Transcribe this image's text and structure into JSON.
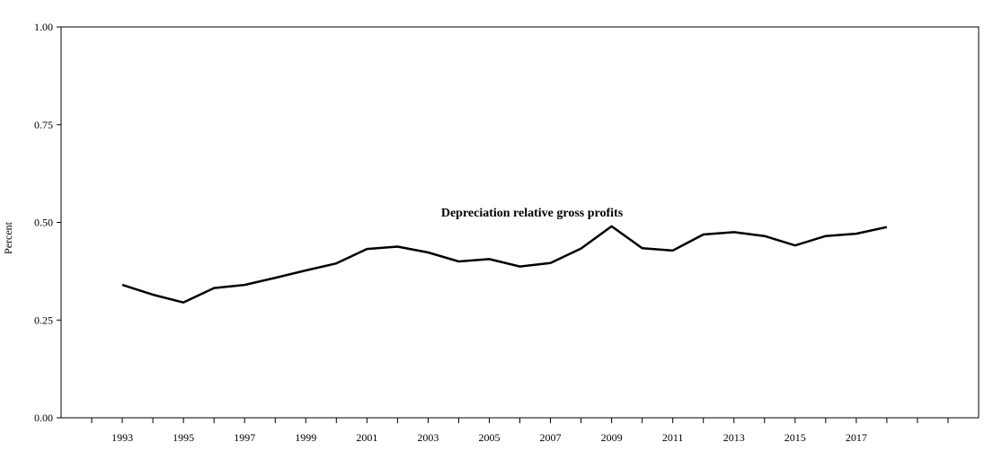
{
  "chart_data": {
    "type": "line",
    "title": "",
    "xlabel": "",
    "ylabel": "Percent",
    "ylim": [
      0,
      1
    ],
    "y_ticks": [
      "0.00",
      "0.25",
      "0.50",
      "0.75",
      "1.00"
    ],
    "x_tick_labels": [
      "1993",
      "1995",
      "1997",
      "1999",
      "2001",
      "2003",
      "2005",
      "2007",
      "2009",
      "2011",
      "2013",
      "2015",
      "2017"
    ],
    "x_range": [
      1991,
      2021
    ],
    "grid": false,
    "annotation": "Depreciation relative gross profits",
    "line_color": "#000000",
    "series": [
      {
        "x": [
          1993,
          1994,
          1995,
          1996,
          1997,
          1998,
          1999,
          2000,
          2001,
          2002,
          2003,
          2004,
          2005,
          2006,
          2007,
          2008,
          2009,
          2010,
          2011,
          2012,
          2013,
          2014,
          2015,
          2016,
          2017,
          2018
        ],
        "values": [
          0.34,
          0.315,
          0.295,
          0.332,
          0.34,
          0.358,
          0.377,
          0.395,
          0.432,
          0.438,
          0.423,
          0.4,
          0.406,
          0.387,
          0.396,
          0.433,
          0.49,
          0.434,
          0.428,
          0.469,
          0.475,
          0.465,
          0.441,
          0.465,
          0.471,
          0.488
        ]
      }
    ]
  }
}
